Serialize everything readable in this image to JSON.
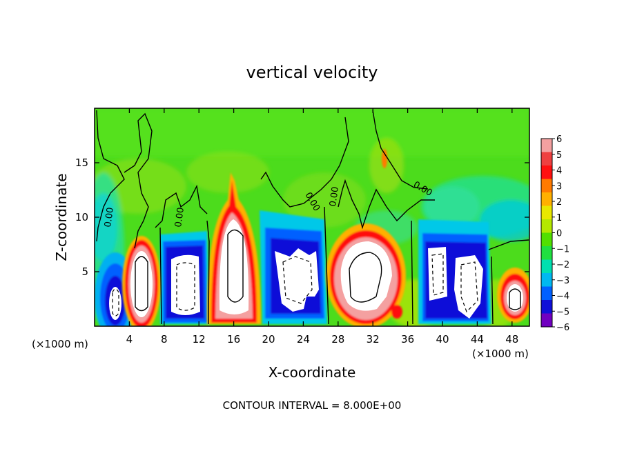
{
  "chart_data": {
    "type": "heatmap",
    "title": "vertical velocity",
    "xlabel": "X-coordinate",
    "ylabel": "Z-coordinate",
    "x_unit_left": "(×1000 m)",
    "x_unit_right": "(×1000 m)",
    "xlim": [
      0,
      50
    ],
    "ylim": [
      0,
      20
    ],
    "x_ticks": [
      4,
      8,
      12,
      16,
      20,
      24,
      28,
      32,
      36,
      40,
      44,
      48
    ],
    "x_tick_labels": [
      "4",
      "8",
      "12",
      "16",
      "20",
      "24",
      "28",
      "32",
      "36",
      "40",
      "44",
      "48"
    ],
    "y_ticks": [
      5,
      10,
      15
    ],
    "y_tick_labels": [
      "5",
      "10",
      "15"
    ],
    "colorbar": {
      "min": -6,
      "max": 6,
      "labels": [
        "6",
        "5",
        "4",
        "3",
        "2",
        "1",
        "0",
        "−1",
        "−2",
        "−3",
        "−4",
        "−5",
        "−6"
      ],
      "colors": [
        "#f4a0a0",
        "#ee4040",
        "#ff1010",
        "#ff7a00",
        "#ffb000",
        "#e8e800",
        "#b4e800",
        "#52e000",
        "#20e040",
        "#00e0b0",
        "#00b8f0",
        "#0060ff",
        "#1010d8",
        "#7000c0"
      ]
    },
    "contour_labels": [
      "0.00",
      "0.00",
      "0.00",
      "0.00",
      "0.00"
    ],
    "footer": "CONTOUR INTERVAL = 8.000E+00",
    "cells": [
      {
        "x": 1.5,
        "z": 2.5,
        "w": -5.5
      },
      {
        "x": 5.8,
        "z": 4.2,
        "w": 6.5
      },
      {
        "x": 9.8,
        "z": 4.2,
        "w": -6.5
      },
      {
        "x": 16.0,
        "z": 6.0,
        "w": 6.5
      },
      {
        "x": 22.5,
        "z": 4.6,
        "w": -6.5
      },
      {
        "x": 30.5,
        "z": 4.5,
        "w": 6.5
      },
      {
        "x": 39.2,
        "z": 4.8,
        "w": -6.5
      },
      {
        "x": 43.0,
        "z": 4.0,
        "w": -6.5
      },
      {
        "x": 47.8,
        "z": 2.8,
        "w": 6.5
      }
    ]
  }
}
